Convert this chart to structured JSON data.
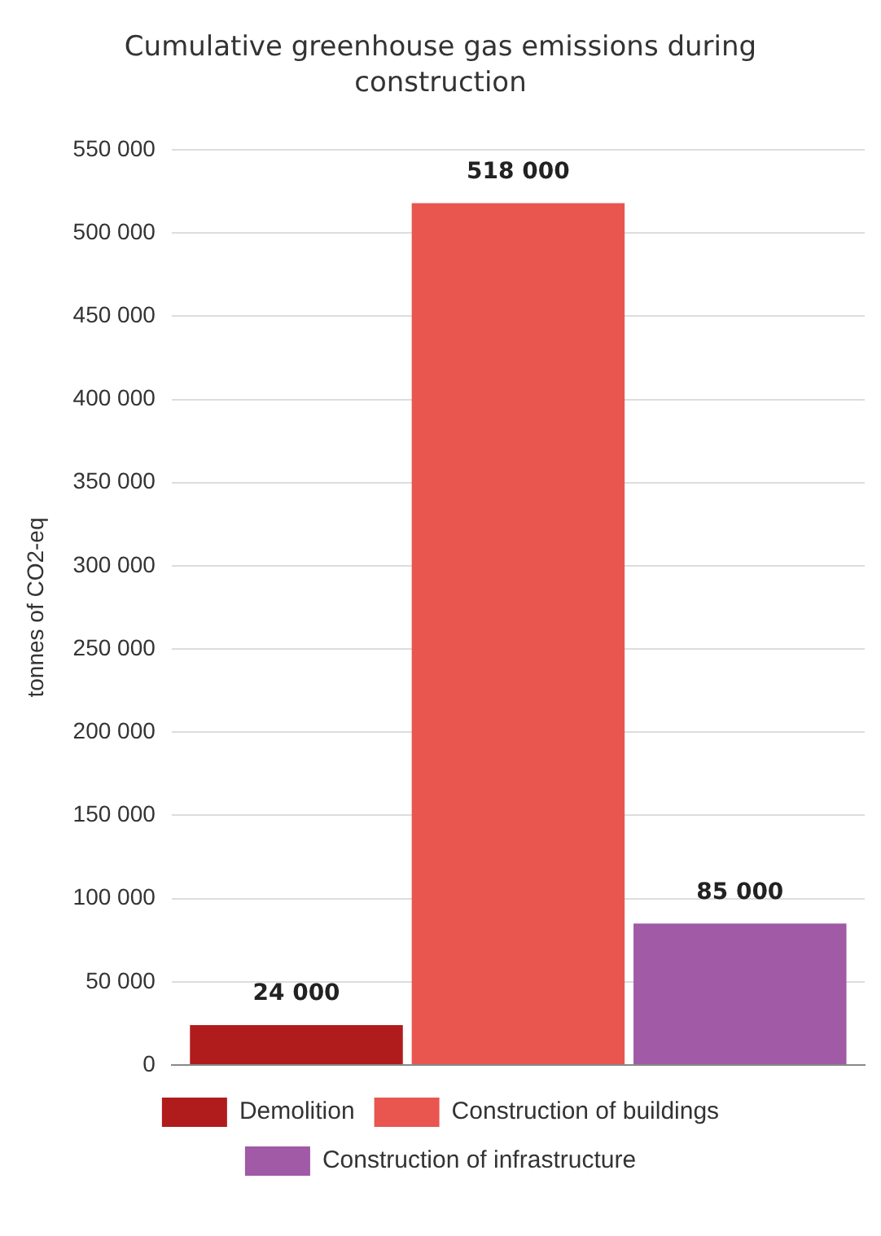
{
  "chart_data": {
    "type": "bar",
    "title": "Cumulative greenhouse gas emissions during construction",
    "ylabel": "tonnes of CO2-eq",
    "categories": [
      null
    ],
    "series": [
      {
        "name": "Demolition",
        "color": "#b01c1c",
        "values": [
          24000
        ],
        "value_labels": [
          "24 000"
        ]
      },
      {
        "name": "Construction of buildings",
        "color": "#e8564f",
        "values": [
          518000
        ],
        "value_labels": [
          "518 000"
        ]
      },
      {
        "name": "Construction of infrastructure",
        "color": "#a05aa6",
        "values": [
          85000
        ],
        "value_labels": [
          "85 000"
        ]
      }
    ],
    "ylim": [
      0,
      550000
    ],
    "yticks": [
      {
        "value": 0,
        "label": "0"
      },
      {
        "value": 50000,
        "label": "50 000"
      },
      {
        "value": 100000,
        "label": "100 000"
      },
      {
        "value": 150000,
        "label": "150 000"
      },
      {
        "value": 200000,
        "label": "200 000"
      },
      {
        "value": 250000,
        "label": "250 000"
      },
      {
        "value": 300000,
        "label": "300 000"
      },
      {
        "value": 350000,
        "label": "350 000"
      },
      {
        "value": 400000,
        "label": "400 000"
      },
      {
        "value": 450000,
        "label": "450 000"
      },
      {
        "value": 500000,
        "label": "500 000"
      },
      {
        "value": 550000,
        "label": "550 000"
      }
    ],
    "grid": "y",
    "legend": "bottom"
  }
}
